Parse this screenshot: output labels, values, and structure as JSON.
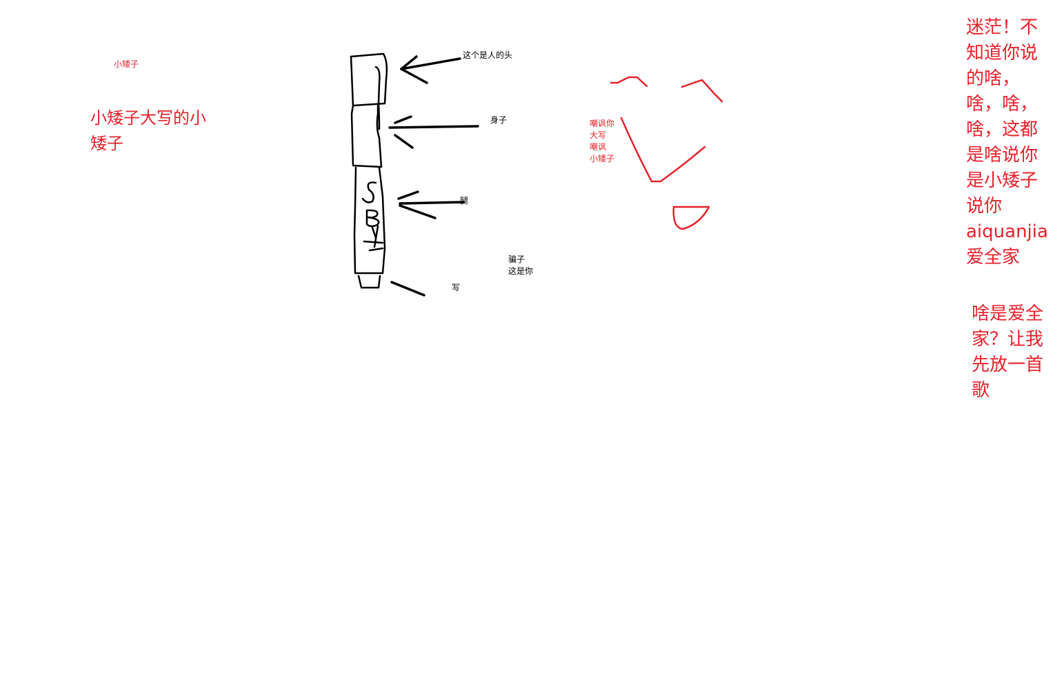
{
  "colors": {
    "ink_black": "#000000",
    "ink_red": "#e8212a",
    "background": "#ffffff"
  },
  "labels": {
    "small_dwarf": "小矮子",
    "dwarf_caps": "小矮子大写的小\n矮子",
    "head": "这个是人的头",
    "body": "身子",
    "leg": "腿",
    "liar": "骗子\n这是你",
    "write": "写",
    "mock": "嘲讽你\n大写\n嘲讽\n小矮子",
    "confused": "迷茫！不\n知道你说\n的啥，\n啥，啥，\n啥，这都\n是啥说你\n是小矮子\n说你\naiquanjia\n爱全家",
    "what_is": "啥是爱全\n家？让我\n先放一首\n歌",
    "sb_scrawl": "SB"
  }
}
